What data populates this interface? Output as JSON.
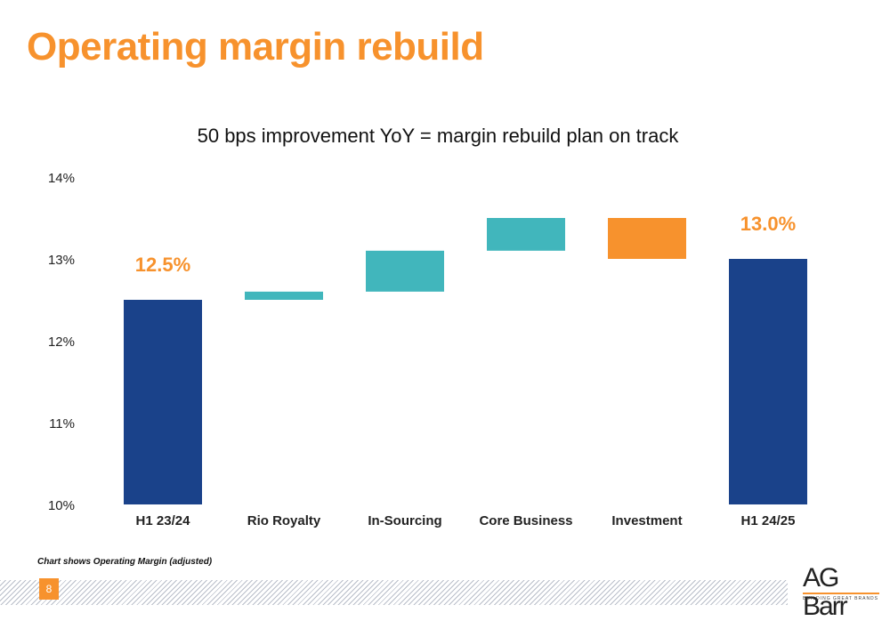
{
  "slide": {
    "title": "Operating margin rebuild",
    "footnote": "Chart shows Operating Margin (adjusted)",
    "page_number": "8"
  },
  "logo": {
    "text": "AG Barr",
    "tagline": "BUILDING GREAT BRANDS"
  },
  "colors": {
    "title": "#F7922D",
    "total_bar": "#1A428A",
    "increase_bar": "#41B6BC",
    "decrease_bar": "#F7922D",
    "total_label": "#F7922D"
  },
  "chart_data": {
    "type": "waterfall",
    "title": "50 bps improvement YoY = margin rebuild plan on track",
    "ylim": [
      10,
      14
    ],
    "yticks": [
      10,
      11,
      12,
      13,
      14
    ],
    "ytick_labels": [
      "10%",
      "11%",
      "12%",
      "13%",
      "14%"
    ],
    "grid": false,
    "bars": [
      {
        "category": "H1 23/24",
        "kind": "total",
        "start": 10,
        "end": 12.5,
        "label": "12.5%"
      },
      {
        "category": "Rio Royalty",
        "kind": "increase",
        "start": 12.5,
        "end": 12.6,
        "label": ""
      },
      {
        "category": "In-Sourcing",
        "kind": "increase",
        "start": 12.6,
        "end": 13.1,
        "label": ""
      },
      {
        "category": "Core Business",
        "kind": "increase",
        "start": 13.1,
        "end": 13.5,
        "label": ""
      },
      {
        "category": "Investment",
        "kind": "decrease",
        "start": 13.5,
        "end": 13.0,
        "label": ""
      },
      {
        "category": "H1 24/25",
        "kind": "total",
        "start": 10,
        "end": 13.0,
        "label": "13.0%"
      }
    ]
  }
}
